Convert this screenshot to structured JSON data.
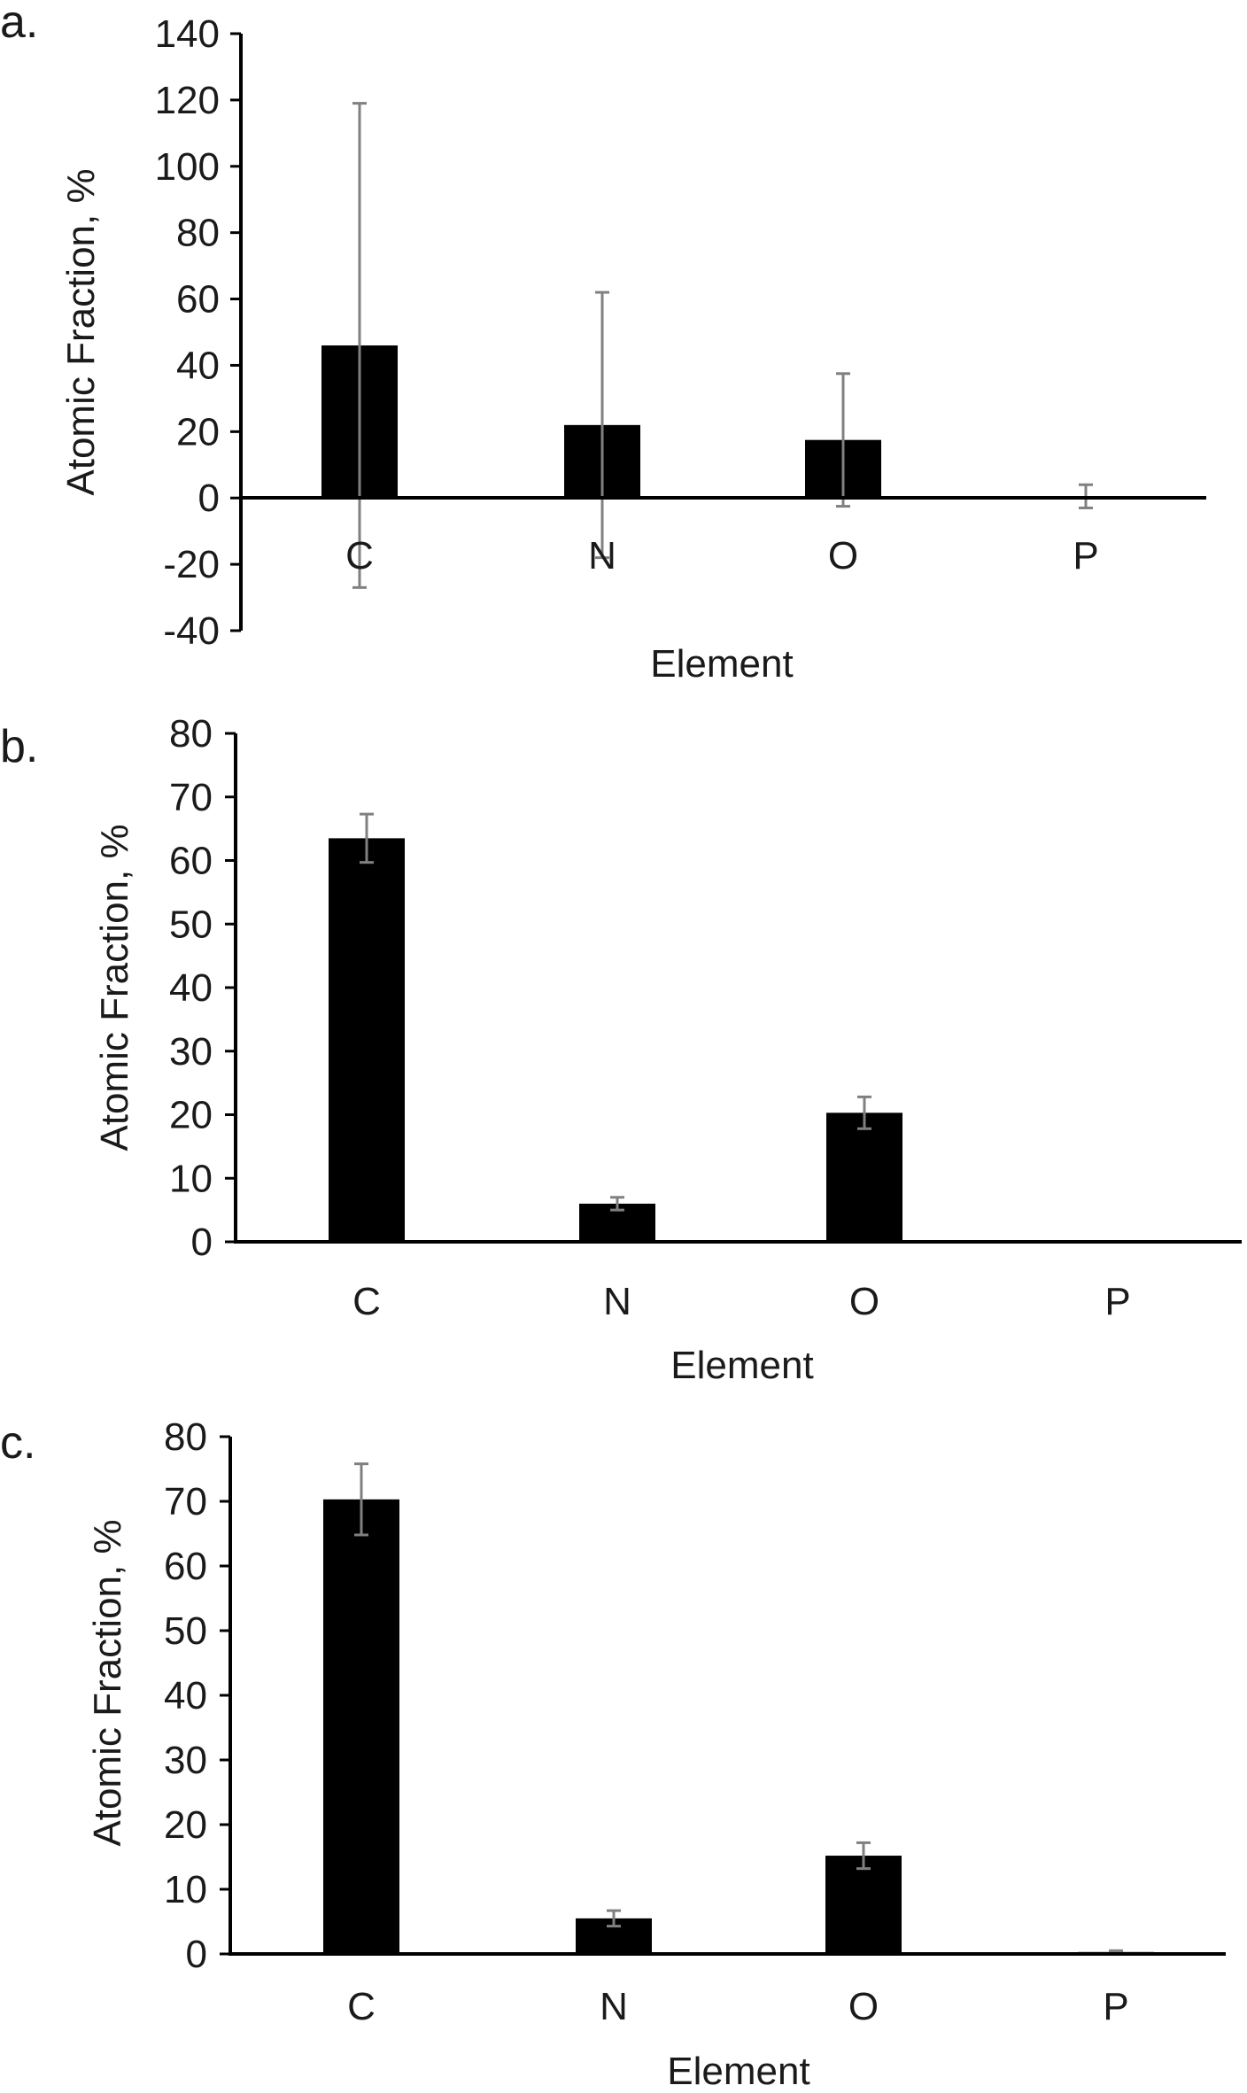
{
  "colors": {
    "bar": "#000000",
    "axis": "#000000",
    "error_bar": "#808080",
    "text": "#1a1a1a",
    "background": "#ffffff"
  },
  "chart_data": [
    {
      "panel_label": "a.",
      "type": "bar",
      "categories": [
        "C",
        "N",
        "O",
        "P"
      ],
      "values": [
        46,
        22,
        17.5,
        0.5
      ],
      "error": [
        73,
        40,
        20,
        3.5
      ],
      "xlabel": "Element",
      "ylabel": "Atomic Fraction, %",
      "ylim": [
        -40,
        140
      ],
      "yticks": [
        -40,
        -20,
        0,
        20,
        40,
        60,
        80,
        100,
        120,
        140
      ],
      "ytick_labels": [
        "-40",
        "-20",
        "0",
        "20",
        "40",
        "60",
        "80",
        "100",
        "120",
        "140"
      ],
      "grid": false,
      "legend": "none"
    },
    {
      "panel_label": "b.",
      "type": "bar",
      "categories": [
        "C",
        "N",
        "O",
        "P"
      ],
      "values": [
        63.5,
        6,
        20.3,
        0
      ],
      "error": [
        3.8,
        1,
        2.5,
        0
      ],
      "xlabel": "Element",
      "ylabel": "Atomic Fraction, %",
      "ylim": [
        0,
        80
      ],
      "yticks": [
        0,
        10,
        20,
        30,
        40,
        50,
        60,
        70,
        80
      ],
      "ytick_labels": [
        "0",
        "10",
        "20",
        "30",
        "40",
        "50",
        "60",
        "70",
        "80"
      ],
      "grid": false,
      "legend": "none"
    },
    {
      "panel_label": "c.",
      "type": "bar",
      "categories": [
        "C",
        "N",
        "O",
        "P"
      ],
      "values": [
        70.3,
        5.5,
        15.2,
        0.3
      ],
      "error": [
        5.5,
        1.2,
        2,
        0.2
      ],
      "xlabel": "Element",
      "ylabel": "Atomic Fraction, %",
      "ylim": [
        0,
        80
      ],
      "yticks": [
        0,
        10,
        20,
        30,
        40,
        50,
        60,
        70,
        80
      ],
      "ytick_labels": [
        "0",
        "10",
        "20",
        "30",
        "40",
        "50",
        "60",
        "70",
        "80"
      ],
      "grid": false,
      "legend": "none"
    }
  ]
}
